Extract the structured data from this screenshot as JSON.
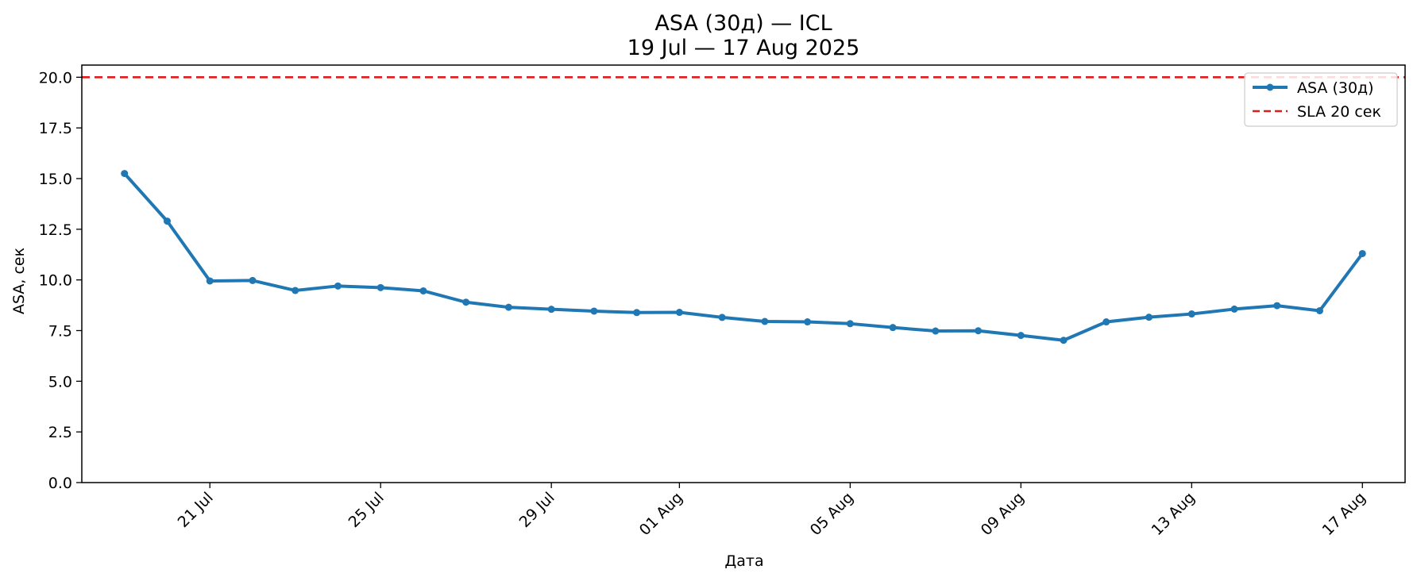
{
  "chart_data": {
    "type": "line",
    "title": "ASA (30д) — ICL",
    "subtitle": "19 Jul — 17 Aug 2025",
    "xlabel": "Дата",
    "ylabel": "ASA, сек",
    "x": [
      "2025-07-19",
      "2025-07-20",
      "2025-07-21",
      "2025-07-22",
      "2025-07-23",
      "2025-07-24",
      "2025-07-25",
      "2025-07-26",
      "2025-07-27",
      "2025-07-28",
      "2025-07-29",
      "2025-07-30",
      "2025-07-31",
      "2025-08-01",
      "2025-08-02",
      "2025-08-03",
      "2025-08-04",
      "2025-08-05",
      "2025-08-06",
      "2025-08-07",
      "2025-08-08",
      "2025-08-09",
      "2025-08-10",
      "2025-08-11",
      "2025-08-12",
      "2025-08-13",
      "2025-08-14",
      "2025-08-15",
      "2025-08-16",
      "2025-08-17"
    ],
    "xticks": [
      {
        "date": "2025-07-21",
        "label": "21 Jul"
      },
      {
        "date": "2025-07-25",
        "label": "25 Jul"
      },
      {
        "date": "2025-07-29",
        "label": "29 Jul"
      },
      {
        "date": "2025-08-01",
        "label": "01 Aug"
      },
      {
        "date": "2025-08-05",
        "label": "05 Aug"
      },
      {
        "date": "2025-08-09",
        "label": "09 Aug"
      },
      {
        "date": "2025-08-13",
        "label": "13 Aug"
      },
      {
        "date": "2025-08-17",
        "label": "17 Aug"
      }
    ],
    "xlim": [
      "2025-07-18",
      "2025-08-18"
    ],
    "ylim": [
      0,
      20.6
    ],
    "yticks": [
      0,
      2.5,
      5,
      7.5,
      10,
      12.5,
      15,
      17.5,
      20
    ],
    "yticks_labels": [
      "0.0",
      "2.5",
      "5.0",
      "7.5",
      "10.0",
      "12.5",
      "15.0",
      "17.5",
      "20.0"
    ],
    "series": [
      {
        "name": "ASA (30д)",
        "color": "#1f77b4",
        "values": [
          15.25,
          12.9,
          9.95,
          9.97,
          9.48,
          9.7,
          9.62,
          9.46,
          8.9,
          8.65,
          8.55,
          8.46,
          8.39,
          8.4,
          8.15,
          7.95,
          7.93,
          7.84,
          7.65,
          7.48,
          7.49,
          7.26,
          7.02,
          7.93,
          8.16,
          8.32,
          8.56,
          8.73,
          8.48,
          11.3
        ]
      }
    ],
    "reference_line": {
      "name": "SLA 20 сек",
      "value": 20,
      "color": "#e41a1c",
      "style": "dashed"
    },
    "legend_position": "top-right",
    "grid": false
  }
}
